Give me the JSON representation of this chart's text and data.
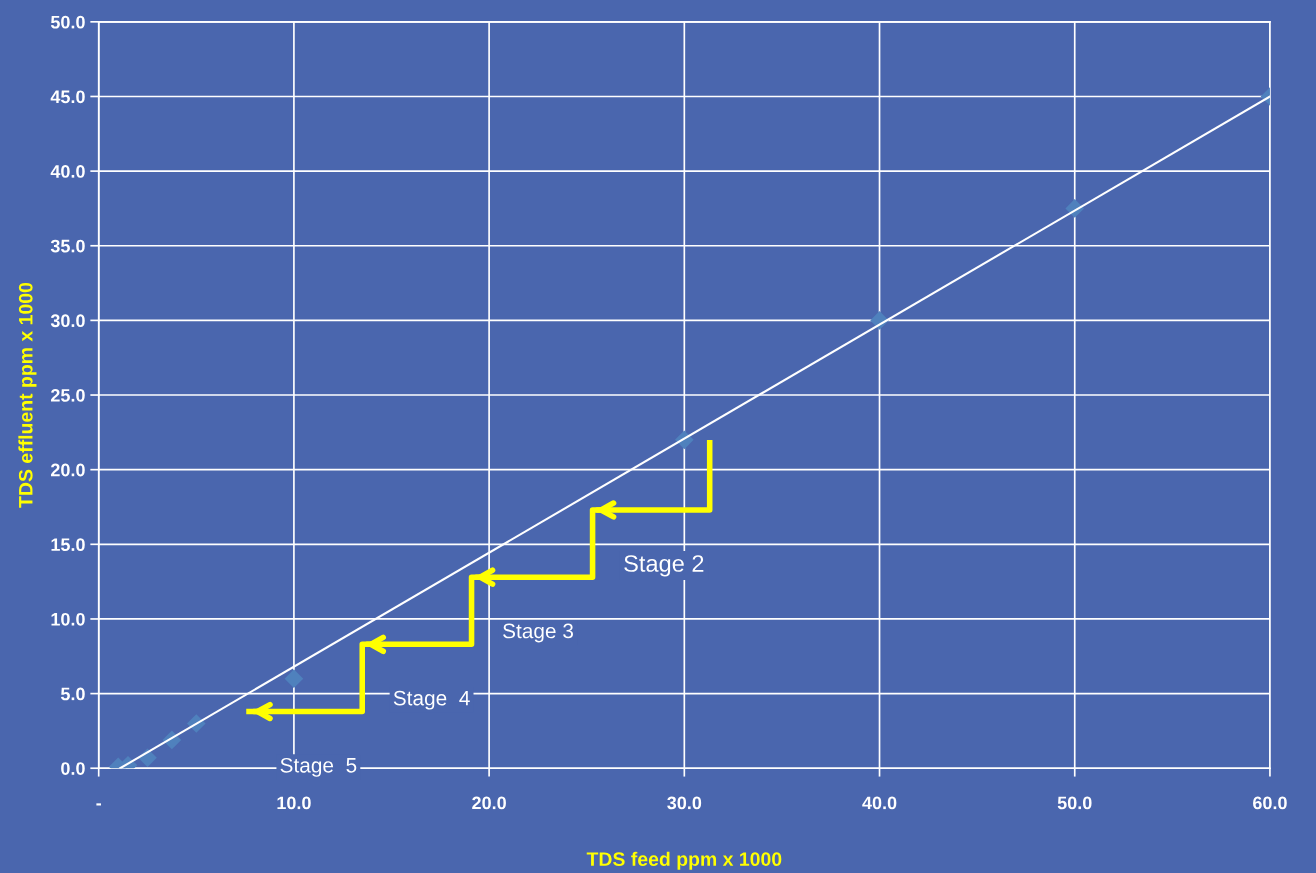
{
  "chart_data": {
    "type": "scatter",
    "xlabel": "TDS feed ppm x 1000",
    "ylabel": "TDS effluent ppm x 1000",
    "xlim": [
      0,
      60
    ],
    "ylim": [
      0,
      50
    ],
    "xticks": [
      {
        "value": 0,
        "label": "-"
      },
      {
        "value": 10,
        "label": "10.0"
      },
      {
        "value": 20,
        "label": "20.0"
      },
      {
        "value": 30,
        "label": "30.0"
      },
      {
        "value": 40,
        "label": "40.0"
      },
      {
        "value": 50,
        "label": "50.0"
      },
      {
        "value": 60,
        "label": "60.0"
      }
    ],
    "yticks": [
      {
        "value": 0,
        "label": "0.0"
      },
      {
        "value": 5,
        "label": "5.0"
      },
      {
        "value": 10,
        "label": "10.0"
      },
      {
        "value": 15,
        "label": "15.0"
      },
      {
        "value": 20,
        "label": "20.0"
      },
      {
        "value": 25,
        "label": "25.0"
      },
      {
        "value": 30,
        "label": "30.0"
      },
      {
        "value": 35,
        "label": "35.0"
      },
      {
        "value": 40,
        "label": "40.0"
      },
      {
        "value": 45,
        "label": "45.0"
      },
      {
        "value": 50,
        "label": "50.0"
      }
    ],
    "grid": true,
    "series": [
      {
        "color": "#4f81bd",
        "marker": "diamond",
        "x": [
          1.0,
          1.5,
          2.5,
          3.75,
          5,
          10,
          30,
          40,
          50,
          60
        ],
        "values": [
          0.1,
          0.2,
          0.7,
          1.9,
          3.0,
          6.0,
          22.0,
          30.0,
          37.5,
          45.0
        ]
      },
      {
        "type": "line",
        "color": "#ffffff",
        "x": [
          1.1,
          60
        ],
        "values": [
          0,
          45.0
        ]
      },
      {
        "type": "line",
        "color": "#ffff00",
        "x": [
          31.3,
          31.3,
          25.3,
          25.3,
          19.1,
          19.1,
          13.5,
          13.5,
          7.7
        ],
        "values": [
          21.8,
          17.3,
          17.3,
          12.8,
          12.8,
          8.3,
          8.3,
          3.8,
          3.8
        ]
      }
    ],
    "annotations": [
      "Stage 2",
      "Stage 3",
      "Stage  4",
      "Stage  5"
    ]
  }
}
